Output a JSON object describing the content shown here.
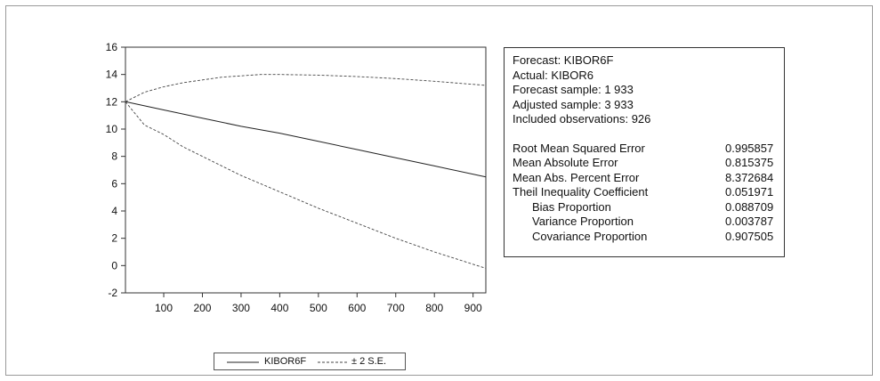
{
  "chart_data": {
    "type": "line",
    "x_ticks": [
      100,
      200,
      300,
      400,
      500,
      600,
      700,
      800,
      900
    ],
    "y_ticks": [
      -2,
      0,
      2,
      4,
      6,
      8,
      10,
      12,
      14,
      16
    ],
    "xlim": [
      1,
      933
    ],
    "ylim": [
      -2,
      16
    ],
    "grid": false,
    "legend_position": "bottom",
    "legend": [
      "KIBOR6F",
      "± 2 S.E."
    ],
    "series": [
      {
        "name": "KIBOR6F",
        "style": "solid",
        "x": [
          1,
          100,
          200,
          300,
          400,
          500,
          600,
          700,
          800,
          933
        ],
        "y": [
          12.0,
          11.4,
          10.8,
          10.2,
          9.7,
          9.1,
          8.5,
          7.9,
          7.3,
          6.5
        ]
      },
      {
        "name": "± 2 S.E.",
        "style": "dashed",
        "x": [
          1,
          50,
          100,
          150,
          200,
          250,
          300,
          350,
          400,
          500,
          600,
          700,
          800,
          933
        ],
        "y": [
          12.0,
          12.7,
          13.1,
          13.4,
          13.6,
          13.8,
          13.9,
          14.0,
          14.0,
          13.95,
          13.85,
          13.7,
          13.5,
          13.2
        ]
      },
      {
        "name": "± 2 S.E.",
        "style": "dashed",
        "x": [
          1,
          50,
          100,
          150,
          200,
          250,
          300,
          350,
          400,
          500,
          600,
          700,
          800,
          933
        ],
        "y": [
          12.0,
          10.3,
          9.6,
          8.7,
          8.0,
          7.3,
          6.6,
          6.0,
          5.4,
          4.2,
          3.1,
          2.0,
          1.0,
          -0.2
        ]
      }
    ]
  },
  "stats": {
    "forecast": "Forecast: KIBOR6F",
    "actual": "Actual: KIBOR6",
    "forecast_sample": "Forecast sample: 1 933",
    "adjusted_sample": "Adjusted sample: 3 933",
    "included_observations": "Included observations: 926",
    "metrics": [
      {
        "label": "Root Mean Squared Error",
        "value": "0.995857",
        "indent": false
      },
      {
        "label": "Mean Absolute Error",
        "value": "0.815375",
        "indent": false
      },
      {
        "label": "Mean Abs. Percent Error",
        "value": "8.372684",
        "indent": false
      },
      {
        "label": "Theil Inequality Coefficient",
        "value": "0.051971",
        "indent": false
      },
      {
        "label": "Bias Proportion",
        "value": "0.088709",
        "indent": true
      },
      {
        "label": "Variance Proportion",
        "value": "0.003787",
        "indent": true
      },
      {
        "label": "Covariance Proportion",
        "value": "0.907505",
        "indent": true
      }
    ]
  }
}
